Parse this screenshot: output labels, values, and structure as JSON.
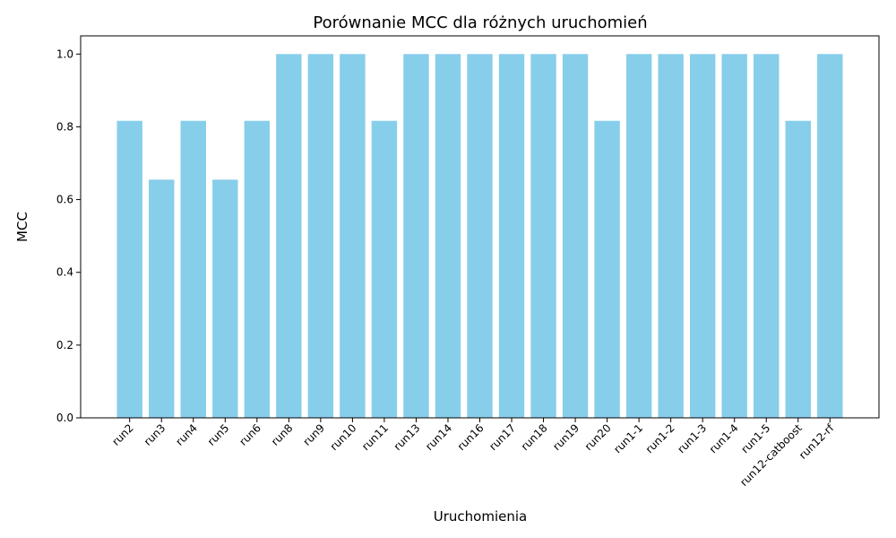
{
  "chart_data": {
    "type": "bar",
    "title": "Porównanie MCC dla różnych uruchomień",
    "xlabel": "Uruchomienia",
    "ylabel": "MCC",
    "categories": [
      "run2",
      "run3",
      "run4",
      "run5",
      "run6",
      "run8",
      "run9",
      "run10",
      "run11",
      "run13",
      "run14",
      "run16",
      "run17",
      "run18",
      "run19",
      "run20",
      "run1-1",
      "run1-2",
      "run1-3",
      "run1-4",
      "run1-5",
      "run12-catboost",
      "run12-rf"
    ],
    "values": [
      0.8165,
      0.6547,
      0.8165,
      0.6547,
      0.8165,
      1.0,
      1.0,
      1.0,
      0.8165,
      1.0,
      1.0,
      1.0,
      1.0,
      1.0,
      1.0,
      0.8165,
      1.0,
      1.0,
      1.0,
      1.0,
      1.0,
      0.8165,
      1.0
    ],
    "ylim": [
      0,
      1.05
    ],
    "yticks": [
      0.0,
      0.2,
      0.4,
      0.6,
      0.8,
      1.0
    ],
    "ytick_labels": [
      "0.0",
      "0.2",
      "0.4",
      "0.6",
      "0.8",
      "1.0"
    ],
    "bar_color": "#87ceeb",
    "grid": false,
    "legend": "none"
  }
}
